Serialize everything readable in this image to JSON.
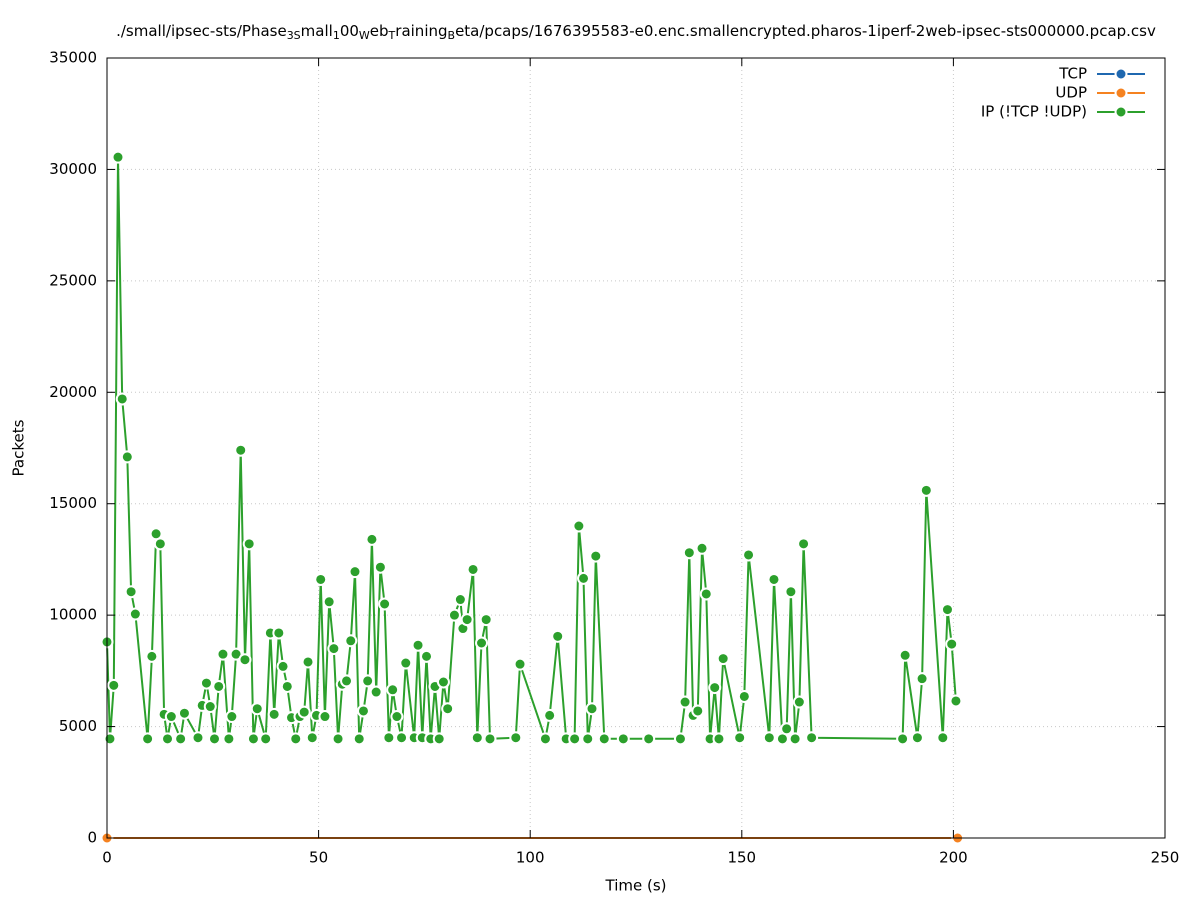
{
  "chart_data": {
    "type": "line",
    "title_parts": [
      "./small/ipsec-sts/Phase",
      "3S",
      "mall",
      "1",
      "00",
      "W",
      "eb",
      "T",
      "raining",
      "B",
      "eta/pcaps/1676395583-e0.enc.smallencrypted.pharos-1iperf-2web-ipsec-sts000000.pcap.csv"
    ],
    "xlabel": "Time (s)",
    "ylabel": "Packets",
    "xlim": [
      0,
      250
    ],
    "ylim": [
      0,
      35000
    ],
    "xticks": [
      0,
      50,
      100,
      150,
      200,
      250
    ],
    "yticks": [
      0,
      5000,
      10000,
      15000,
      20000,
      25000,
      30000,
      35000
    ],
    "grid": true,
    "legend": "top-right",
    "series": [
      {
        "name": "TCP",
        "color": "#1f68b0",
        "x": [],
        "values": []
      },
      {
        "name": "UDP",
        "color": "#f58220",
        "x": [
          0,
          201
        ],
        "values": [
          0,
          0
        ]
      },
      {
        "name": "IP (!TCP  !UDP)",
        "color": "#2ca02c",
        "x": [
          0,
          0.7,
          1.6,
          2.6,
          3.6,
          4.8,
          5.7,
          6.7,
          9.6,
          10.6,
          11.6,
          12.6,
          13.5,
          14.3,
          15.2,
          17.4,
          18.3,
          21.5,
          22.5,
          23.5,
          24.4,
          25.4,
          26.4,
          27.4,
          28.8,
          29.5,
          30.5,
          31.6,
          32.6,
          33.6,
          34.6,
          35.5,
          37.5,
          38.6,
          39.5,
          40.6,
          41.6,
          42.6,
          43.6,
          44.6,
          45.6,
          46.6,
          47.5,
          48.5,
          49.5,
          50.5,
          51.5,
          52.5,
          53.6,
          54.6,
          55.6,
          56.6,
          57.6,
          58.6,
          59.6,
          60.6,
          61.6,
          62.6,
          63.6,
          64.6,
          65.6,
          66.6,
          67.5,
          68.5,
          69.6,
          70.6,
          72.6,
          73.5,
          74.5,
          75.5,
          76.5,
          77.5,
          78.5,
          79.5,
          80.5,
          82.1,
          83.5,
          84.1,
          85.1,
          86.5,
          87.5,
          88.5,
          89.6,
          90.5,
          96.6,
          97.6,
          103.6,
          104.6,
          106.5,
          108.5,
          110.5,
          111.5,
          112.6,
          113.6,
          114.6,
          115.5,
          117.5,
          122,
          128,
          135.5,
          136.6,
          137.6,
          138.5,
          139.6,
          140.6,
          141.6,
          142.5,
          143.6,
          144.6,
          145.6,
          149.5,
          150.6,
          151.6,
          156.5,
          157.6,
          159.6,
          160.6,
          161.6,
          162.6,
          163.6,
          164.6,
          166.5,
          188,
          188.6,
          191.5,
          192.6,
          193.6,
          197.5,
          198.6,
          199.6,
          200.6
        ],
        "values": [
          8800,
          4450,
          6850,
          30550,
          19700,
          17100,
          11050,
          10050,
          4450,
          8150,
          13650,
          13200,
          5550,
          4450,
          5450,
          4450,
          5600,
          4500,
          5950,
          6950,
          5900,
          4450,
          6800,
          8250,
          4450,
          5450,
          8250,
          17400,
          8000,
          13200,
          4450,
          5800,
          4450,
          9200,
          5550,
          9200,
          7700,
          6800,
          5400,
          4450,
          5450,
          5650,
          7900,
          4500,
          5500,
          11600,
          5450,
          10600,
          8500,
          4450,
          6900,
          7050,
          8850,
          11950,
          4450,
          5700,
          7050,
          13400,
          6550,
          12150,
          10500,
          4500,
          6650,
          5450,
          4500,
          7850,
          4500,
          8650,
          4500,
          8150,
          4450,
          6800,
          4450,
          7000,
          5800,
          10000,
          10700,
          9400,
          9800,
          12050,
          4500,
          8750,
          9800,
          4450,
          4500,
          7800,
          4450,
          5500,
          9050,
          4450,
          4450,
          14000,
          11650,
          4450,
          5800,
          12650,
          4450,
          4450,
          4450,
          4450,
          6100,
          12800,
          5500,
          5700,
          13000,
          10950,
          4450,
          6750,
          4450,
          8050,
          4500,
          6350,
          12700,
          4500,
          11600,
          4450,
          4900,
          11050,
          4450,
          6100,
          13200,
          4500,
          4450,
          8200,
          4500,
          7150,
          15600,
          4500,
          10250,
          8700,
          6150
        ]
      }
    ]
  }
}
